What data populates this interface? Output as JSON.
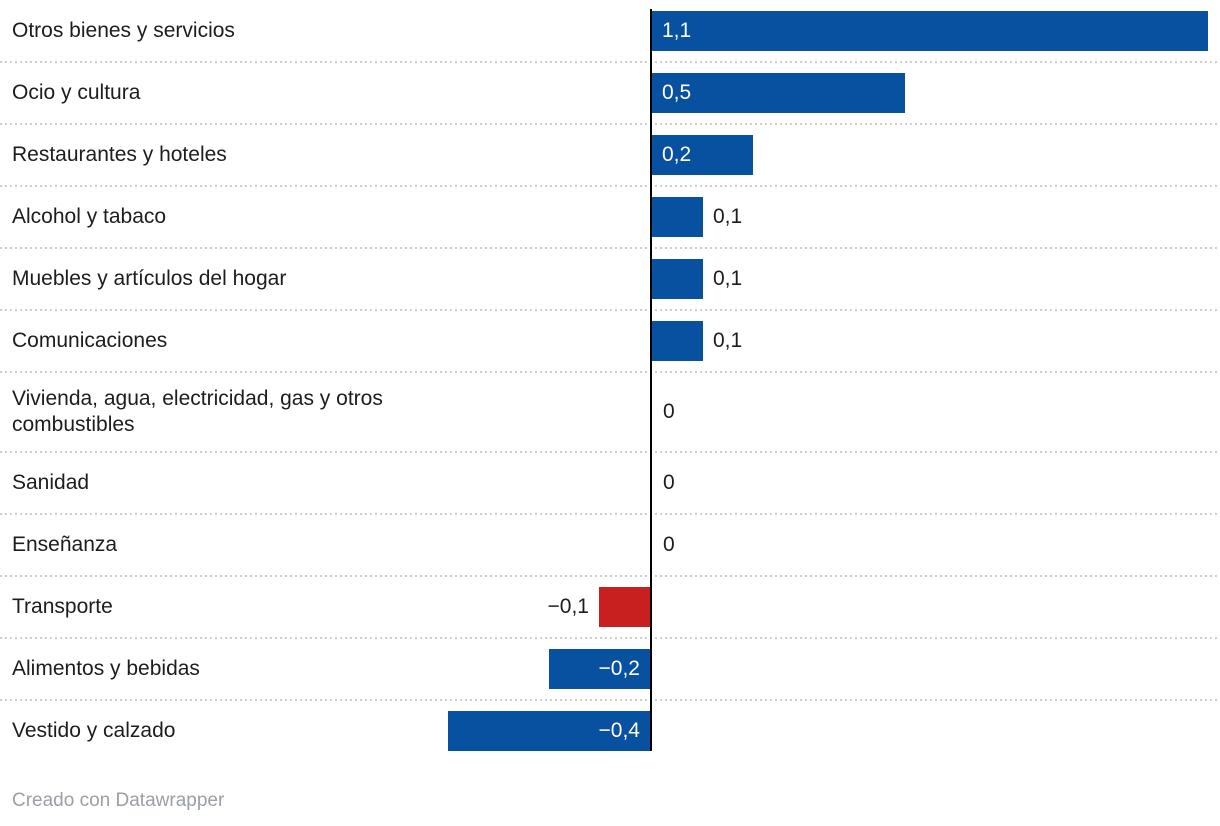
{
  "chart_data": {
    "type": "bar",
    "orientation": "horizontal",
    "title": "",
    "xlabel": "",
    "ylabel": "",
    "xlim": [
      -0.45,
      1.12
    ],
    "grid": "dotted-row-separators",
    "legend_position": "none",
    "decimal_separator": ",",
    "categories": [
      "Otros bienes y servicios",
      "Ocio y cultura",
      "Restaurantes y hoteles",
      "Alcohol y tabaco",
      "Muebles y artículos del hogar",
      "Comunicaciones",
      "Vivienda, agua, electricidad, gas y otros combustibles",
      "Sanidad",
      "Enseñanza",
      "Transporte",
      "Alimentos y bebidas",
      "Vestido y calzado"
    ],
    "values": [
      1.1,
      0.5,
      0.2,
      0.1,
      0.1,
      0.1,
      0,
      0,
      0,
      -0.1,
      -0.2,
      -0.4
    ],
    "value_labels": [
      "1,1",
      "0,5",
      "0,2",
      "0,1",
      "0,1",
      "0,1",
      "0",
      "0",
      "0",
      "−0,1",
      "−0,2",
      "−0,4"
    ],
    "bar_colors": [
      "#0850a0",
      "#0850a0",
      "#0850a0",
      "#0850a0",
      "#0850a0",
      "#0850a0",
      "#0850a0",
      "#0850a0",
      "#0850a0",
      "#c8201e",
      "#0850a0",
      "#0850a0"
    ],
    "colors": {
      "positive_bar": "#0850a0",
      "negative_highlight_bar": "#c8201e",
      "axis_line": "#000000",
      "value_label_dark": "#1d1d1d",
      "value_label_light": "#ffffff"
    }
  },
  "footer": {
    "credit": "Creado con Datawrapper"
  }
}
